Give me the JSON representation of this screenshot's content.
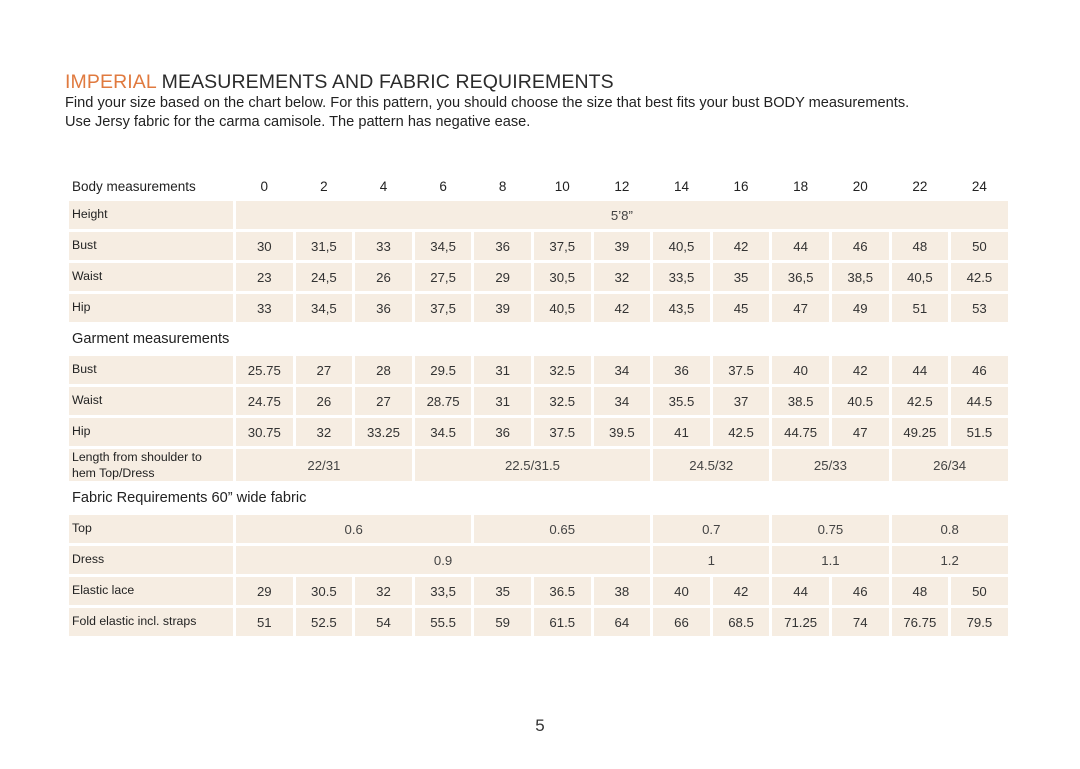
{
  "header": {
    "title_accent": "IMPERIAL",
    "title_rest": " MEASUREMENTS AND FABRIC REQUIREMENTS",
    "intro_line1": "Find your size based on the chart below. For this pattern, you should choose the size that best fits your bust BODY measurements.",
    "intro_line2": "Use Jersy fabric for the carma camisole. The pattern has negative ease."
  },
  "table": {
    "header_label": "Body measurements",
    "sizes": [
      "0",
      "2",
      "4",
      "6",
      "8",
      "10",
      "12",
      "14",
      "16",
      "18",
      "20",
      "22",
      "24"
    ],
    "body": {
      "height": {
        "label": "Height",
        "value": "5’8”"
      },
      "bust": {
        "label": "Bust",
        "values": [
          "30",
          "31,5",
          "33",
          "34,5",
          "36",
          "37,5",
          "39",
          "40,5",
          "42",
          "44",
          "46",
          "48",
          "50"
        ]
      },
      "waist": {
        "label": "Waist",
        "values": [
          "23",
          "24,5",
          "26",
          "27,5",
          "29",
          "30,5",
          "32",
          "33,5",
          "35",
          "36,5",
          "38,5",
          "40,5",
          "42.5"
        ]
      },
      "hip": {
        "label": "Hip",
        "values": [
          "33",
          "34,5",
          "36",
          "37,5",
          "39",
          "40,5",
          "42",
          "43,5",
          "45",
          "47",
          "49",
          "51",
          "53"
        ]
      }
    },
    "garment_section": "Garment measurements",
    "garment": {
      "bust": {
        "label": "Bust",
        "values": [
          "25.75",
          "27",
          "28",
          "29.5",
          "31",
          "32.5",
          "34",
          "36",
          "37.5",
          "40",
          "42",
          "44",
          "46"
        ]
      },
      "waist": {
        "label": "Waist",
        "values": [
          "24.75",
          "26",
          "27",
          "28.75",
          "31",
          "32.5",
          "34",
          "35.5",
          "37",
          "38.5",
          "40.5",
          "42.5",
          "44.5"
        ]
      },
      "hip": {
        "label": "Hip",
        "values": [
          "30.75",
          "32",
          "33.25",
          "34.5",
          "36",
          "37.5",
          "39.5",
          "41",
          "42.5",
          "44.75",
          "47",
          "49.25",
          "51.5"
        ]
      },
      "length": {
        "label_line1": "Length from shoulder to",
        "label_line2": "hem Top/Dress",
        "groups": [
          "22/31",
          "22.5/31.5",
          "24.5/32",
          "25/33",
          "26/34"
        ]
      }
    },
    "fabric_section": "Fabric Requirements 60” wide fabric",
    "fabric": {
      "top": {
        "label": "Top",
        "groups": [
          "0.6",
          "0.65",
          "0.7",
          "0.75",
          "0.8"
        ]
      },
      "dress": {
        "label": "Dress",
        "groups": [
          "0.9",
          "1",
          "1.1",
          "1.2"
        ]
      },
      "elastic_lace": {
        "label": "Elastic lace",
        "values": [
          "29",
          "30.5",
          "32",
          "33,5",
          "35",
          "36.5",
          "38",
          "40",
          "42",
          "44",
          "46",
          "48",
          "50"
        ]
      },
      "fold_elastic": {
        "label": "Fold elastic incl. straps",
        "values": [
          "51",
          "52.5",
          "54",
          "55.5",
          "59",
          "61.5",
          "64",
          "66",
          "68.5",
          "71.25",
          "74",
          "76.75",
          "79.5"
        ]
      }
    }
  },
  "footer": {
    "page_number": "5"
  },
  "colors": {
    "accent": "#e07a3f",
    "cell_background": "#f6ede2"
  }
}
